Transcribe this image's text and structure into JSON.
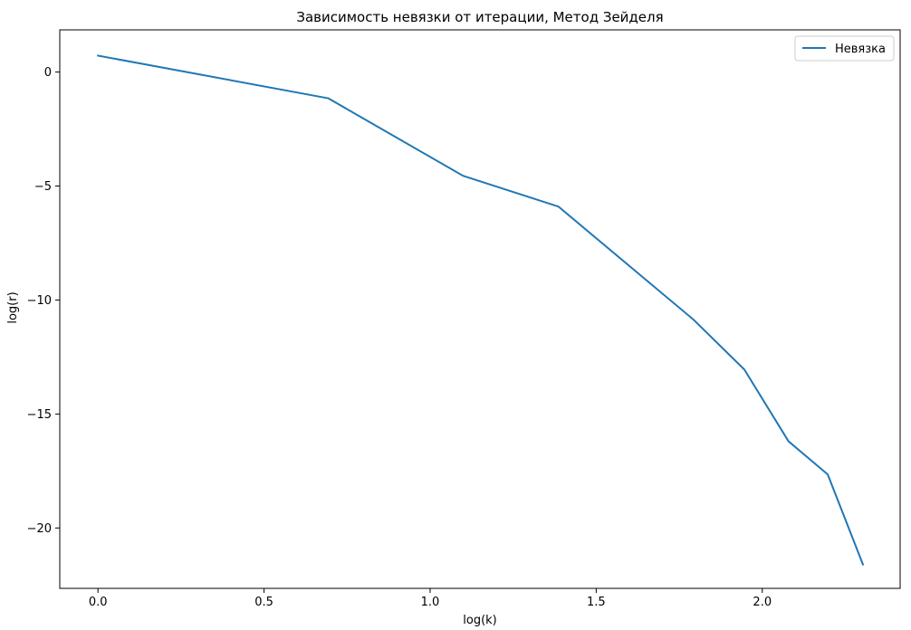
{
  "chart_data": {
    "type": "line",
    "title": "Зависимость невязки от итерации, Метод Зейделя",
    "xlabel": "log(k)",
    "ylabel": "log(r)",
    "xlim": [
      -0.115,
      2.415
    ],
    "ylim": [
      -22.65,
      1.85
    ],
    "xticks": [
      0.0,
      0.5,
      1.0,
      1.5,
      2.0
    ],
    "xtick_labels": [
      "0.0",
      "0.5",
      "1.0",
      "1.5",
      "2.0"
    ],
    "yticks": [
      0,
      -5,
      -10,
      -15,
      -20
    ],
    "ytick_labels": [
      "0",
      "−5",
      "−10",
      "−15",
      "−20"
    ],
    "grid": false,
    "legend_position": "upper right",
    "series": [
      {
        "name": "Невязка",
        "color": "#1f77b4",
        "x": [
          0.0,
          0.693,
          1.099,
          1.386,
          1.792,
          1.946,
          2.079,
          2.197,
          2.303
        ],
        "y": [
          0.72,
          -1.15,
          -4.55,
          -5.9,
          -10.85,
          -13.05,
          -16.2,
          -17.65,
          -21.6
        ]
      }
    ]
  }
}
